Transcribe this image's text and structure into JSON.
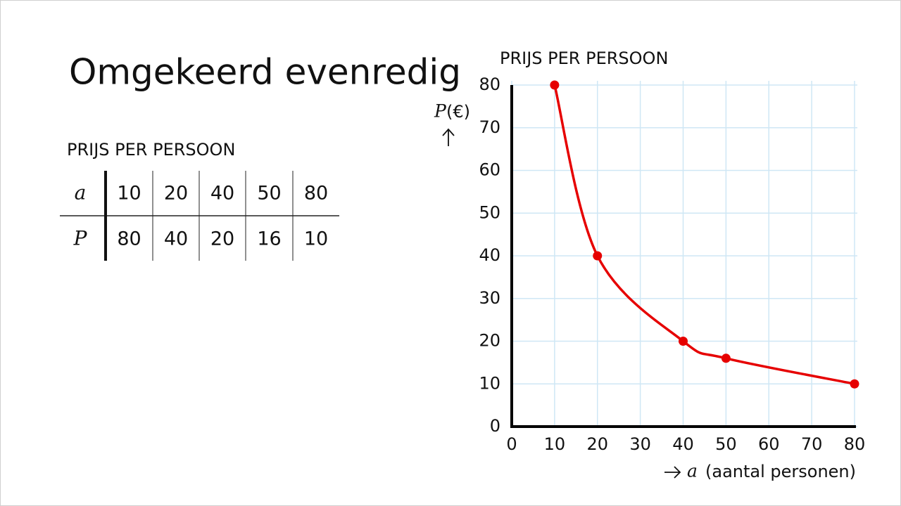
{
  "slide_title": "Omgekeerd evenredig",
  "table": {
    "title": "PRIJS PER PERSOON",
    "rows": [
      [
        "a",
        10,
        20,
        40,
        50,
        80
      ],
      [
        "P",
        80,
        40,
        20,
        16,
        10
      ]
    ]
  },
  "chart_data": {
    "type": "line",
    "title": "PRIJS PER PERSOON",
    "ylabel_symbol": "P",
    "ylabel_text": "(€)",
    "xlabel_symbol": "a",
    "xlabel_text": "(aantal personen)",
    "x": [
      10,
      20,
      40,
      50,
      80
    ],
    "values": [
      80,
      40,
      20,
      16,
      10
    ],
    "color": "#e60000",
    "xlim": [
      0,
      80
    ],
    "xticks": [
      0,
      10,
      20,
      30,
      40,
      50,
      60,
      70,
      80
    ],
    "ylim": [
      0,
      80
    ],
    "yticks": [
      0,
      10,
      20,
      30,
      40,
      50,
      60,
      70,
      80
    ],
    "grid": true
  }
}
